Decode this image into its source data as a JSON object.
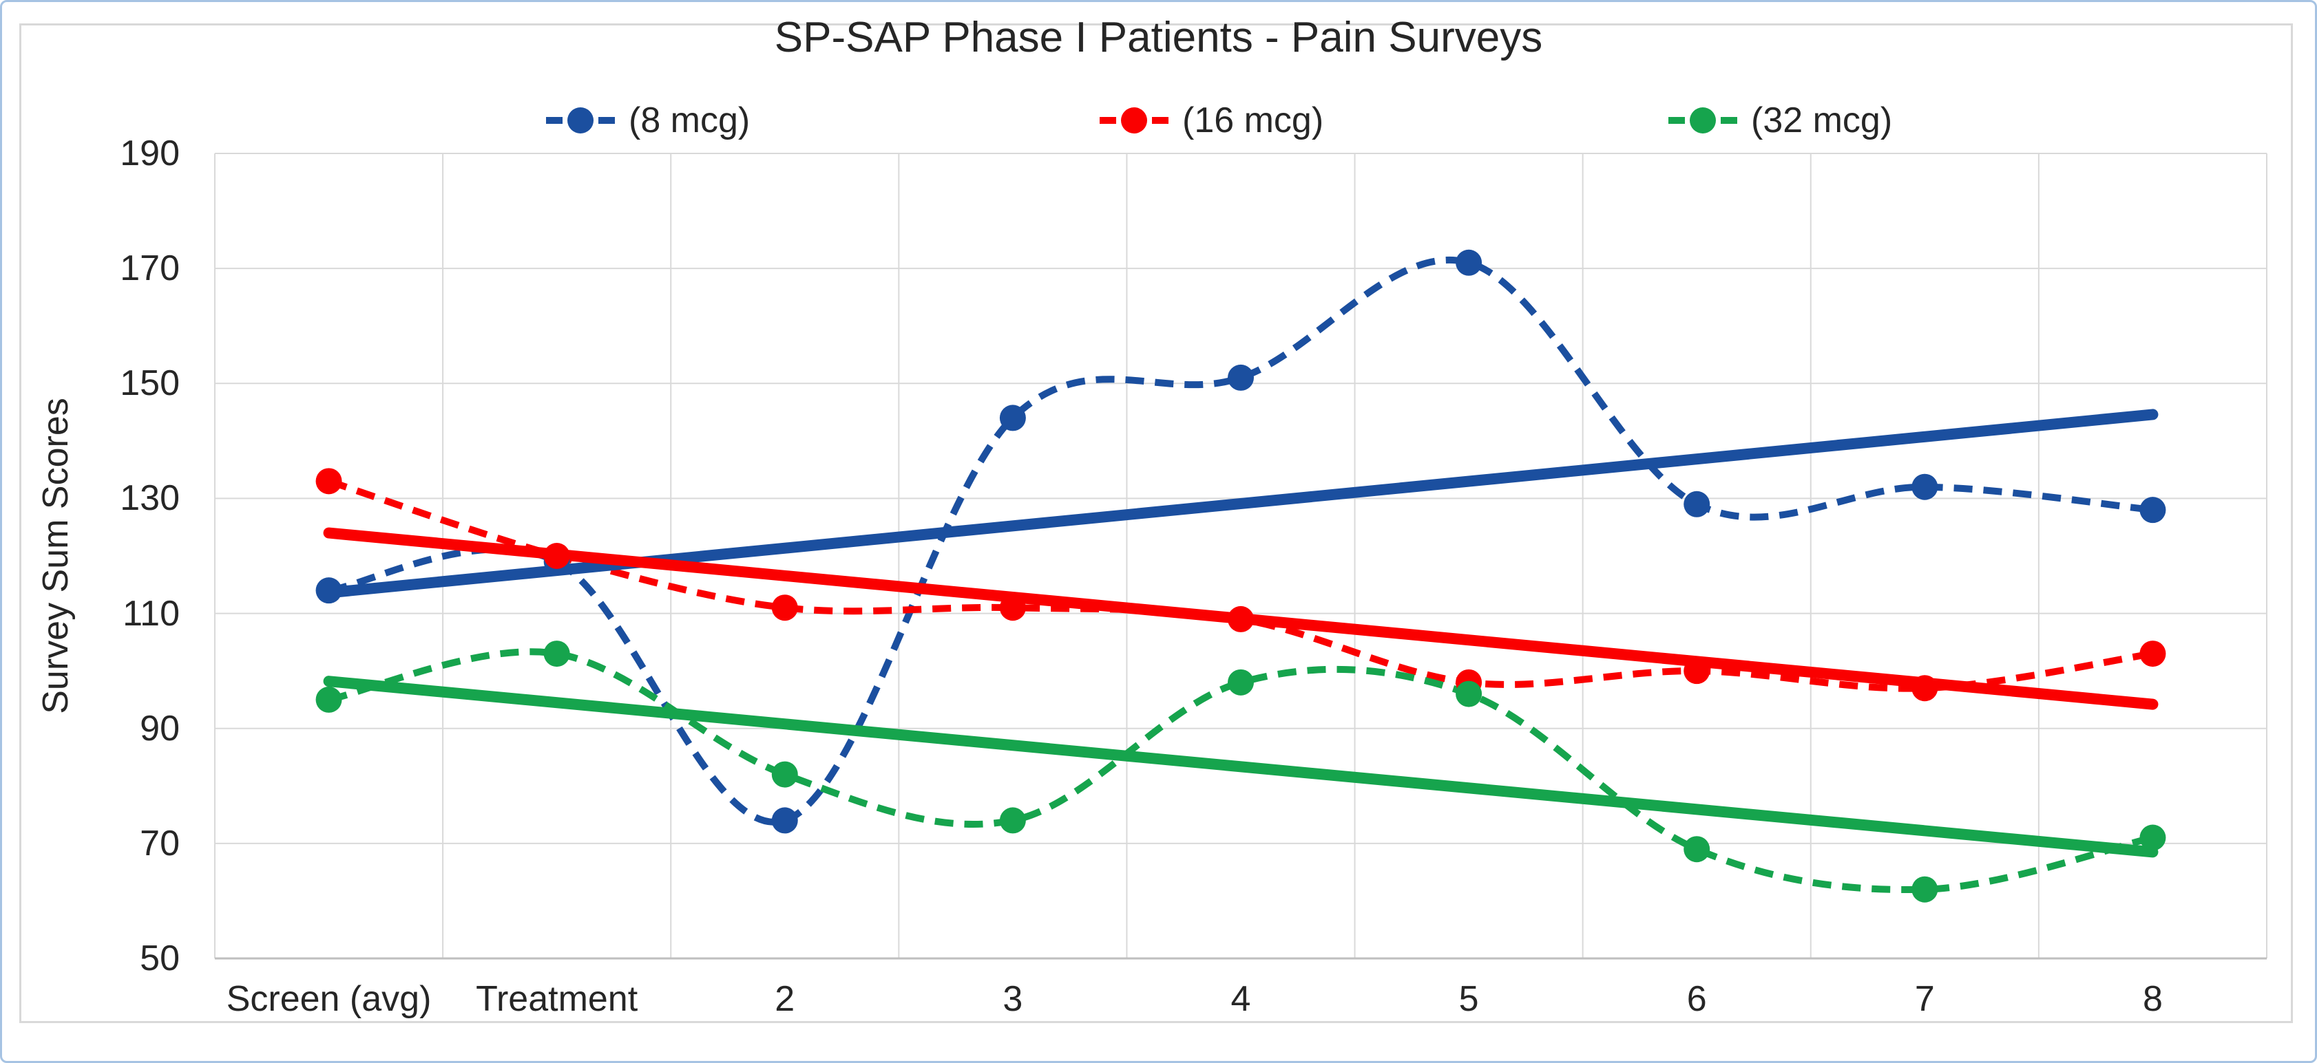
{
  "chart_data": {
    "type": "line",
    "title": "SP-SAP Phase I Patients - Pain Surveys",
    "ylabel": "Survey Sum Scores",
    "categories": [
      "Screen (avg)",
      "Treatment",
      "2",
      "3",
      "4",
      "5",
      "6",
      "7",
      "8"
    ],
    "ylim": [
      50,
      190
    ],
    "ytick_step": 20,
    "yticks": [
      50,
      70,
      90,
      110,
      130,
      150,
      170,
      190
    ],
    "grid": true,
    "smooth_lines": true,
    "legend_position": "top",
    "series": [
      {
        "name": "(8 mcg)",
        "color": "#1B4F9F",
        "line_style": "dashed",
        "marker": "circle",
        "values": [
          114,
          119,
          74,
          144,
          151,
          171,
          129,
          132,
          128
        ],
        "trendline": {
          "style": "solid",
          "y_start": 113.6,
          "y_end": 144.6
        }
      },
      {
        "name": "(16 mcg)",
        "color": "#FA0000",
        "line_style": "dashed",
        "marker": "circle",
        "values": [
          133,
          120,
          111,
          111,
          109,
          98,
          100,
          97,
          103
        ],
        "trendline": {
          "style": "solid",
          "y_start": 124.0,
          "y_end": 94.2
        }
      },
      {
        "name": "(32 mcg)",
        "color": "#16A44D",
        "line_style": "dashed",
        "marker": "circle",
        "values": [
          95,
          103,
          82,
          74,
          98,
          96,
          69,
          62,
          71
        ],
        "trendline": {
          "style": "solid",
          "y_start": 98.2,
          "y_end": 68.5
        }
      }
    ]
  },
  "styles": {
    "gridline_color": "#D9D9D9",
    "axis_line_color": "#BFBFBF",
    "text_color": "#262626",
    "chart_border_color": "#D9D9D9",
    "outer_border_color": "#A6C3E3",
    "background": "#FFFFFF"
  }
}
